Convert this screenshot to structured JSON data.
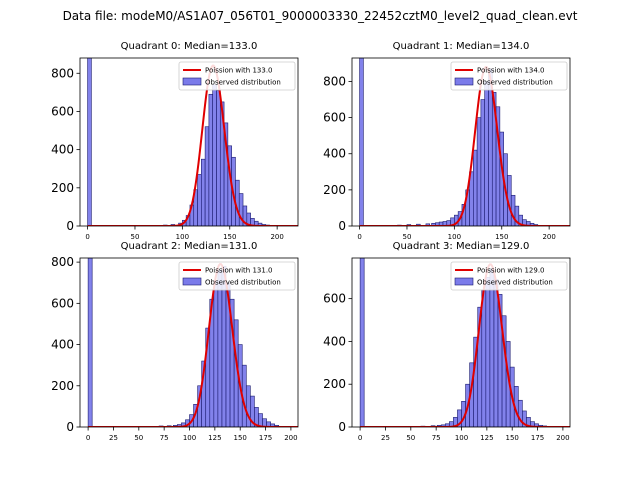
{
  "figure_title": "Data file: modeM0/AS1A07_056T01_9000003330_22452cztM0_level2_quad_clean.evt",
  "colors": {
    "bar_fill": "#7b7bea",
    "bar_edge": "#1a1a6e",
    "poisson_line": "#e00000"
  },
  "chart_data": [
    {
      "type": "bar",
      "title": "Quadrant 0: Median=133.0",
      "median": 133.0,
      "xlim": [
        -8,
        222
      ],
      "ylim": [
        0,
        880
      ],
      "xticks": [
        0,
        50,
        100,
        150,
        200
      ],
      "yticks": [
        0,
        200,
        400,
        600,
        800
      ],
      "bin_width": 4,
      "bins_x": [
        0,
        40,
        60,
        80,
        88,
        96,
        100,
        104,
        108,
        112,
        116,
        120,
        124,
        128,
        132,
        136,
        140,
        144,
        148,
        152,
        156,
        160,
        164,
        168,
        172,
        176,
        180,
        184,
        188
      ],
      "bins_y": [
        880,
        2,
        3,
        5,
        8,
        15,
        30,
        55,
        110,
        190,
        270,
        350,
        520,
        690,
        740,
        710,
        650,
        540,
        420,
        360,
        240,
        170,
        105,
        68,
        40,
        25,
        15,
        8,
        5
      ],
      "poisson_lambda": 133.0,
      "poisson_peak": 840,
      "legend": [
        "Poission with 133.0",
        "Observed distribution"
      ]
    },
    {
      "type": "bar",
      "title": "Quadrant 1: Median=134.0",
      "median": 134.0,
      "xlim": [
        -8,
        222
      ],
      "ylim": [
        0,
        930
      ],
      "xticks": [
        0,
        50,
        100,
        150,
        200
      ],
      "yticks": [
        0,
        200,
        400,
        600,
        800
      ],
      "bin_width": 4,
      "bins_x": [
        0,
        40,
        50,
        60,
        70,
        76,
        80,
        84,
        88,
        92,
        96,
        100,
        104,
        108,
        112,
        116,
        120,
        124,
        128,
        132,
        136,
        140,
        144,
        148,
        152,
        156,
        160,
        164,
        168,
        172,
        176,
        180,
        184
      ],
      "bins_y": [
        930,
        5,
        8,
        10,
        12,
        15,
        18,
        22,
        25,
        30,
        45,
        60,
        80,
        120,
        200,
        300,
        420,
        600,
        700,
        800,
        870,
        740,
        660,
        520,
        400,
        280,
        170,
        110,
        60,
        35,
        25,
        15,
        8
      ],
      "poisson_lambda": 134.0,
      "poisson_peak": 880,
      "legend": [
        "Poission with 134.0",
        "Observed distribution"
      ]
    },
    {
      "type": "bar",
      "title": "Quadrant 2: Median=131.0",
      "median": 131.0,
      "xlim": [
        -8,
        207
      ],
      "ylim": [
        0,
        820
      ],
      "xticks": [
        0,
        25,
        50,
        75,
        100,
        125,
        150,
        175,
        200
      ],
      "yticks": [
        0,
        200,
        400,
        600,
        800
      ],
      "bin_width": 4,
      "bins_x": [
        0,
        50,
        60,
        70,
        78,
        84,
        88,
        92,
        96,
        100,
        104,
        108,
        112,
        116,
        120,
        124,
        128,
        132,
        136,
        140,
        144,
        148,
        152,
        156,
        160,
        164,
        168,
        172,
        176,
        180,
        184
      ],
      "bins_y": [
        820,
        2,
        3,
        5,
        6,
        8,
        12,
        20,
        35,
        60,
        110,
        200,
        320,
        480,
        620,
        710,
        760,
        780,
        700,
        620,
        520,
        400,
        300,
        200,
        150,
        95,
        65,
        40,
        25,
        15,
        8
      ],
      "poisson_lambda": 131.0,
      "poisson_peak": 790,
      "legend": [
        "Poission with 131.0",
        "Observed distribution"
      ]
    },
    {
      "type": "bar",
      "title": "Quadrant 3: Median=129.0",
      "median": 129.0,
      "xlim": [
        -8,
        207
      ],
      "ylim": [
        0,
        790
      ],
      "xticks": [
        0,
        25,
        50,
        75,
        100,
        125,
        150,
        175,
        200
      ],
      "yticks": [
        0,
        200,
        400,
        600
      ],
      "bin_width": 4,
      "bins_x": [
        0,
        50,
        60,
        70,
        76,
        80,
        84,
        88,
        92,
        96,
        100,
        104,
        108,
        112,
        116,
        120,
        124,
        128,
        132,
        136,
        140,
        144,
        148,
        152,
        156,
        160,
        164,
        168,
        172,
        176,
        180
      ],
      "bins_y": [
        790,
        2,
        4,
        6,
        8,
        10,
        15,
        25,
        45,
        80,
        120,
        200,
        300,
        420,
        560,
        640,
        700,
        740,
        690,
        620,
        520,
        400,
        280,
        190,
        125,
        75,
        45,
        25,
        15,
        8,
        5
      ],
      "poisson_lambda": 129.0,
      "poisson_peak": 760,
      "legend": [
        "Poission with 129.0",
        "Observed distribution"
      ]
    }
  ]
}
